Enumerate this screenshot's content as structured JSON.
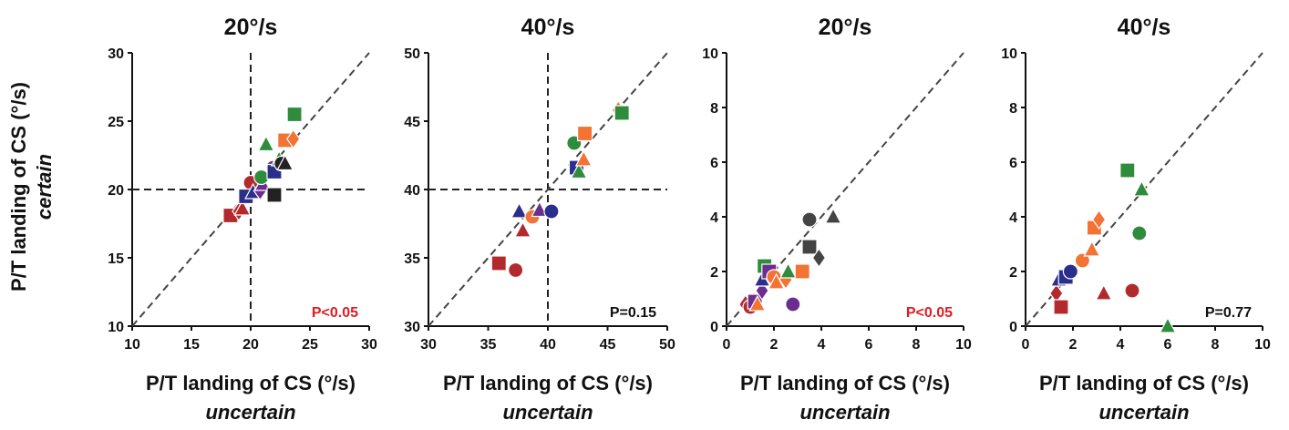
{
  "figure": {
    "shared_ylabel_line1": "P/T landing of CS (°/s)",
    "shared_ylabel_line2": "certain"
  },
  "colors": {
    "red": "#b22a2d",
    "green": "#2f8c3c",
    "orange": "#f37335",
    "purple": "#6b2d8f",
    "navy": "#2b2f8c",
    "black": "#222222",
    "gray": "#444444",
    "pvalue_significant": "#e31b23",
    "pvalue_nonsignificant": "#111111"
  },
  "chart_data": [
    {
      "type": "scatter",
      "title": "20°/s",
      "xlabel_line1": "P/T landing of CS (°/s)",
      "xlabel_line2": "uncertain",
      "xlim": [
        10,
        30
      ],
      "ylim": [
        10,
        30
      ],
      "xticks": [
        10,
        15,
        20,
        25,
        30
      ],
      "yticks": [
        10,
        15,
        20,
        25,
        30
      ],
      "reference_lines": {
        "x": 20,
        "y": 20
      },
      "identity_line": true,
      "p_value": {
        "text": "P<0.05",
        "color": "pvalue_significant"
      },
      "points": [
        {
          "x": 18.3,
          "y": 18.1,
          "shape": "square",
          "color": "red"
        },
        {
          "x": 19.0,
          "y": 18.4,
          "shape": "diamond",
          "color": "red"
        },
        {
          "x": 19.3,
          "y": 18.6,
          "shape": "triangle",
          "color": "red"
        },
        {
          "x": 20.0,
          "y": 20.5,
          "shape": "circle",
          "color": "red"
        },
        {
          "x": 19.6,
          "y": 19.5,
          "shape": "square",
          "color": "navy"
        },
        {
          "x": 20.2,
          "y": 19.8,
          "shape": "triangle",
          "color": "navy"
        },
        {
          "x": 20.8,
          "y": 19.9,
          "shape": "diamond",
          "color": "purple"
        },
        {
          "x": 21.0,
          "y": 20.4,
          "shape": "triangle",
          "color": "purple"
        },
        {
          "x": 20.9,
          "y": 20.9,
          "shape": "circle",
          "color": "green"
        },
        {
          "x": 21.9,
          "y": 21.6,
          "shape": "circle",
          "color": "purple"
        },
        {
          "x": 22.0,
          "y": 21.3,
          "shape": "square",
          "color": "navy"
        },
        {
          "x": 21.3,
          "y": 23.3,
          "shape": "triangle",
          "color": "green"
        },
        {
          "x": 22.4,
          "y": 22.2,
          "shape": "triangle",
          "color": "green"
        },
        {
          "x": 22.6,
          "y": 21.9,
          "shape": "circle",
          "color": "black"
        },
        {
          "x": 22.9,
          "y": 21.9,
          "shape": "triangle",
          "color": "black"
        },
        {
          "x": 22.0,
          "y": 19.6,
          "shape": "square",
          "color": "black"
        },
        {
          "x": 22.9,
          "y": 23.6,
          "shape": "square",
          "color": "orange"
        },
        {
          "x": 23.6,
          "y": 23.7,
          "shape": "diamond",
          "color": "orange"
        },
        {
          "x": 23.7,
          "y": 25.5,
          "shape": "square",
          "color": "green"
        }
      ]
    },
    {
      "type": "scatter",
      "title": "40°/s",
      "xlabel_line1": "P/T landing of  CS (°/s)",
      "xlabel_line2": "uncertain",
      "xlim": [
        30,
        50
      ],
      "ylim": [
        30,
        50
      ],
      "xticks": [
        30,
        35,
        40,
        45,
        50
      ],
      "yticks": [
        30,
        35,
        40,
        45,
        50
      ],
      "reference_lines": {
        "x": 40,
        "y": 40
      },
      "identity_line": true,
      "p_value": {
        "text": "P=0.15",
        "color": "pvalue_nonsignificant"
      },
      "points": [
        {
          "x": 35.9,
          "y": 34.6,
          "shape": "square",
          "color": "red"
        },
        {
          "x": 37.3,
          "y": 34.1,
          "shape": "circle",
          "color": "red"
        },
        {
          "x": 37.9,
          "y": 37.0,
          "shape": "triangle",
          "color": "red"
        },
        {
          "x": 37.6,
          "y": 38.4,
          "shape": "triangle",
          "color": "navy"
        },
        {
          "x": 38.7,
          "y": 38.0,
          "shape": "circle",
          "color": "orange"
        },
        {
          "x": 39.3,
          "y": 38.5,
          "shape": "triangle",
          "color": "purple"
        },
        {
          "x": 40.3,
          "y": 38.4,
          "shape": "circle",
          "color": "navy"
        },
        {
          "x": 42.2,
          "y": 43.4,
          "shape": "circle",
          "color": "green"
        },
        {
          "x": 42.4,
          "y": 41.6,
          "shape": "square",
          "color": "navy"
        },
        {
          "x": 42.6,
          "y": 41.3,
          "shape": "triangle",
          "color": "green"
        },
        {
          "x": 43.0,
          "y": 42.2,
          "shape": "triangle",
          "color": "orange"
        },
        {
          "x": 43.1,
          "y": 44.1,
          "shape": "square",
          "color": "orange"
        },
        {
          "x": 45.9,
          "y": 45.8,
          "shape": "diamond",
          "color": "orange"
        },
        {
          "x": 46.2,
          "y": 45.6,
          "shape": "square",
          "color": "green"
        }
      ]
    },
    {
      "type": "scatter",
      "title": "20°/s",
      "xlabel_line1": "P/T landing of CS (°/s)",
      "xlabel_line2": "uncertain",
      "xlim": [
        0,
        10
      ],
      "ylim": [
        0,
        10
      ],
      "xticks": [
        0,
        2,
        4,
        6,
        8,
        10
      ],
      "yticks": [
        0,
        2,
        4,
        6,
        8,
        10
      ],
      "reference_lines": null,
      "identity_line": true,
      "p_value": {
        "text": "P<0.05",
        "color": "pvalue_significant"
      },
      "points": [
        {
          "x": 0.8,
          "y": 0.8,
          "shape": "diamond",
          "color": "red"
        },
        {
          "x": 1.0,
          "y": 0.7,
          "shape": "circle",
          "color": "red"
        },
        {
          "x": 1.2,
          "y": 0.9,
          "shape": "square",
          "color": "purple"
        },
        {
          "x": 1.3,
          "y": 0.8,
          "shape": "triangle",
          "color": "orange"
        },
        {
          "x": 1.5,
          "y": 1.3,
          "shape": "diamond",
          "color": "purple"
        },
        {
          "x": 1.5,
          "y": 1.7,
          "shape": "triangle",
          "color": "navy"
        },
        {
          "x": 1.6,
          "y": 2.2,
          "shape": "square",
          "color": "green"
        },
        {
          "x": 1.8,
          "y": 2.0,
          "shape": "square",
          "color": "purple"
        },
        {
          "x": 2.0,
          "y": 1.8,
          "shape": "circle",
          "color": "orange"
        },
        {
          "x": 2.1,
          "y": 1.6,
          "shape": "triangle",
          "color": "orange"
        },
        {
          "x": 2.5,
          "y": 1.7,
          "shape": "diamond",
          "color": "orange"
        },
        {
          "x": 2.6,
          "y": 2.0,
          "shape": "triangle",
          "color": "green"
        },
        {
          "x": 2.8,
          "y": 0.8,
          "shape": "circle",
          "color": "purple"
        },
        {
          "x": 3.2,
          "y": 2.0,
          "shape": "square",
          "color": "orange"
        },
        {
          "x": 3.5,
          "y": 3.9,
          "shape": "circle",
          "color": "gray"
        },
        {
          "x": 3.5,
          "y": 2.9,
          "shape": "square",
          "color": "gray"
        },
        {
          "x": 3.9,
          "y": 2.5,
          "shape": "diamond",
          "color": "gray"
        },
        {
          "x": 4.5,
          "y": 4.0,
          "shape": "triangle",
          "color": "gray"
        }
      ]
    },
    {
      "type": "scatter",
      "title": "40°/s",
      "xlabel_line1": "P/T landing of CS (°/s)",
      "xlabel_line2": "uncertain",
      "xlim": [
        0,
        10
      ],
      "ylim": [
        0,
        10
      ],
      "xticks": [
        0,
        2,
        4,
        6,
        8,
        10
      ],
      "yticks": [
        0,
        2,
        4,
        6,
        8,
        10
      ],
      "reference_lines": null,
      "identity_line": true,
      "p_value": {
        "text": "P=0.77",
        "color": "pvalue_nonsignificant"
      },
      "points": [
        {
          "x": 1.3,
          "y": 1.2,
          "shape": "diamond",
          "color": "red"
        },
        {
          "x": 1.4,
          "y": 1.7,
          "shape": "triangle",
          "color": "navy"
        },
        {
          "x": 1.5,
          "y": 0.7,
          "shape": "square",
          "color": "red"
        },
        {
          "x": 1.7,
          "y": 1.8,
          "shape": "square",
          "color": "navy"
        },
        {
          "x": 1.9,
          "y": 2.0,
          "shape": "circle",
          "color": "navy"
        },
        {
          "x": 2.4,
          "y": 2.4,
          "shape": "circle",
          "color": "orange"
        },
        {
          "x": 2.8,
          "y": 2.8,
          "shape": "triangle",
          "color": "orange"
        },
        {
          "x": 2.9,
          "y": 3.6,
          "shape": "square",
          "color": "orange"
        },
        {
          "x": 3.1,
          "y": 3.9,
          "shape": "diamond",
          "color": "orange"
        },
        {
          "x": 3.3,
          "y": 1.2,
          "shape": "triangle",
          "color": "red"
        },
        {
          "x": 4.3,
          "y": 5.7,
          "shape": "square",
          "color": "green"
        },
        {
          "x": 4.5,
          "y": 1.3,
          "shape": "circle",
          "color": "red"
        },
        {
          "x": 4.8,
          "y": 3.4,
          "shape": "circle",
          "color": "green"
        },
        {
          "x": 4.9,
          "y": 5.0,
          "shape": "triangle",
          "color": "green"
        },
        {
          "x": 6.0,
          "y": 0.0,
          "shape": "triangle",
          "color": "green"
        }
      ]
    }
  ]
}
